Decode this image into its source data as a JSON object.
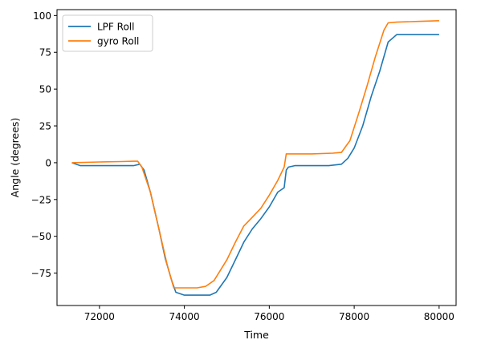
{
  "chart_data": {
    "type": "line",
    "title": "",
    "xlabel": "Time",
    "ylabel": "Angle (degrees)",
    "xlim": [
      71000,
      80400
    ],
    "ylim": [
      -97,
      104
    ],
    "xticks": [
      72000,
      74000,
      76000,
      78000,
      80000
    ],
    "yticks": [
      -75,
      -50,
      -25,
      0,
      25,
      50,
      75,
      100
    ],
    "grid": false,
    "legend_position": "top-left",
    "series": [
      {
        "name": "LPF Roll",
        "color": "#1f77b4",
        "x": [
          71350,
          71550,
          72000,
          72500,
          72800,
          72950,
          73050,
          73200,
          73400,
          73550,
          73700,
          73800,
          74000,
          74300,
          74600,
          74750,
          75000,
          75200,
          75400,
          75600,
          75800,
          76000,
          76200,
          76350,
          76400,
          76450,
          76600,
          77000,
          77400,
          77700,
          77850,
          78000,
          78200,
          78400,
          78600,
          78800,
          79000,
          79500,
          80000
        ],
        "y": [
          0,
          -2,
          -2,
          -2,
          -2,
          -1,
          -5,
          -20,
          -45,
          -65,
          -80,
          -88,
          -90,
          -90,
          -90,
          -88,
          -78,
          -66,
          -54,
          -45,
          -38,
          -30,
          -20,
          -17,
          -5,
          -3,
          -2,
          -2,
          -2,
          -1,
          3,
          10,
          25,
          45,
          62,
          82,
          87,
          87,
          87
        ]
      },
      {
        "name": "gyro Roll",
        "color": "#ff7f0e",
        "x": [
          71350,
          72000,
          72500,
          72800,
          72900,
          73000,
          73200,
          73400,
          73600,
          73750,
          74000,
          74300,
          74500,
          74700,
          75000,
          75200,
          75400,
          75600,
          75800,
          76000,
          76200,
          76350,
          76400,
          76450,
          77000,
          77500,
          77700,
          77900,
          78100,
          78300,
          78500,
          78700,
          78800,
          79000,
          79500,
          80000
        ],
        "y": [
          0,
          0.5,
          0.8,
          1,
          1,
          -3,
          -20,
          -45,
          -70,
          -85,
          -85,
          -85,
          -84,
          -80,
          -66,
          -54,
          -43,
          -37,
          -31,
          -22,
          -12,
          -3,
          6,
          6,
          6,
          6.5,
          7,
          15,
          33,
          52,
          72,
          90,
          95,
          95.5,
          96,
          96.5
        ]
      }
    ]
  }
}
